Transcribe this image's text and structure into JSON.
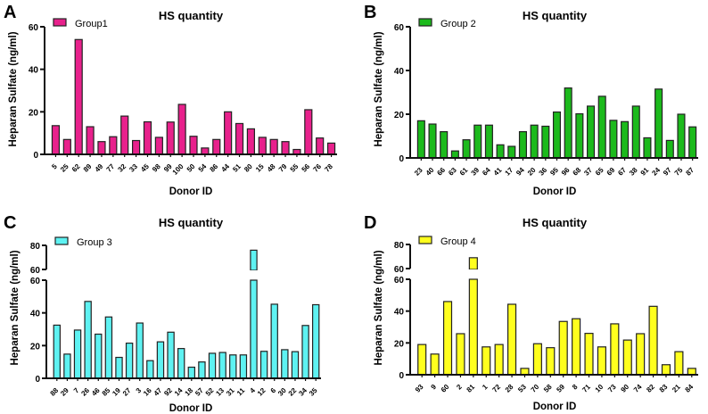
{
  "chart_data": [
    {
      "panel": "A",
      "type": "bar",
      "title": "HS quantity",
      "xlabel": "Donor ID",
      "ylabel": "Heparan Sulfate (ng/ml)",
      "legend": "Group1",
      "legend_position": "top-left",
      "color": "#e8218c",
      "ylim": [
        0,
        60
      ],
      "yticks": [
        0,
        20,
        40,
        60
      ],
      "categories": [
        "5",
        "25",
        "62",
        "89",
        "49",
        "77",
        "32",
        "33",
        "45",
        "98",
        "99",
        "100",
        "50",
        "54",
        "86",
        "44",
        "51",
        "80",
        "15",
        "48",
        "79",
        "55",
        "56",
        "76",
        "78"
      ],
      "values": [
        13.5,
        7,
        54,
        13,
        6,
        8.3,
        18,
        6.5,
        15.3,
        8,
        15.2,
        23.5,
        8.5,
        3,
        7,
        20,
        14.5,
        12,
        8,
        7,
        6,
        2.3,
        21,
        7.7,
        5.3
      ]
    },
    {
      "panel": "B",
      "type": "bar",
      "title": "HS quantity",
      "xlabel": "Donor ID",
      "ylabel": "Heparan Sulfate (ng/ml)",
      "legend": "Group 2",
      "legend_position": "top-left",
      "color": "#1cba1c",
      "ylim": [
        0,
        60
      ],
      "yticks": [
        0,
        20,
        40,
        60
      ],
      "categories": [
        "23",
        "40",
        "66",
        "63",
        "61",
        "39",
        "64",
        "41",
        "17",
        "94",
        "20",
        "36",
        "95",
        "96",
        "68",
        "37",
        "65",
        "69",
        "67",
        "38",
        "91",
        "24",
        "97",
        "75",
        "87"
      ],
      "values": [
        17,
        15.5,
        12,
        3.2,
        8.3,
        15,
        15,
        6,
        5.3,
        12,
        15,
        14.5,
        21,
        32,
        20.2,
        23.7,
        28.2,
        17.2,
        16.6,
        23.7,
        9.2,
        31.5,
        8,
        20,
        14.2
      ]
    },
    {
      "panel": "C",
      "type": "bar",
      "title": "HS quantity",
      "xlabel": "Donor ID",
      "ylabel": "Heparan Sulfate (ng/ml)",
      "legend": "Group 3",
      "legend_position": "top-left",
      "color": "#5ef2f2",
      "ylim": [
        0,
        80
      ],
      "axis_break": [
        60,
        60
      ],
      "yticks_lower": [
        0,
        20,
        40,
        60
      ],
      "yticks_upper": [
        60,
        80
      ],
      "categories": [
        "88",
        "29",
        "7",
        "26",
        "46",
        "85",
        "19",
        "27",
        "3",
        "16",
        "47",
        "92",
        "14",
        "18",
        "57",
        "52",
        "13",
        "31",
        "11",
        "4",
        "12",
        "6",
        "30",
        "22",
        "34",
        "35"
      ],
      "values": [
        32.5,
        14.8,
        29.5,
        47,
        27,
        37.5,
        12.8,
        21.5,
        33.8,
        10.8,
        22.3,
        28.2,
        18.2,
        6.8,
        10,
        15.3,
        15.8,
        14.3,
        14.3,
        76,
        16.5,
        45.3,
        17.5,
        16.3,
        32.3,
        45
      ]
    },
    {
      "panel": "D",
      "type": "bar",
      "title": "HS quantity",
      "xlabel": "Donor ID",
      "ylabel": "Heparan Sulfate (ng/ml)",
      "legend": "Group 4",
      "legend_position": "top-left",
      "color": "#ffff1e",
      "ylim": [
        0,
        80
      ],
      "axis_break": [
        60,
        60
      ],
      "yticks_lower": [
        0,
        20,
        40,
        60
      ],
      "yticks_upper": [
        60,
        80
      ],
      "categories": [
        "93",
        "9",
        "60",
        "2",
        "81",
        "1",
        "72",
        "28",
        "53",
        "70",
        "58",
        "59",
        "8",
        "71",
        "10",
        "73",
        "90",
        "74",
        "82",
        "83",
        "21",
        "84"
      ],
      "values": [
        19,
        13,
        46,
        25.8,
        69,
        17.5,
        19,
        44.3,
        4,
        19.5,
        17,
        33.5,
        35.2,
        26,
        17.5,
        32,
        21.8,
        25.8,
        43,
        6.3,
        14.5,
        4
      ]
    }
  ]
}
